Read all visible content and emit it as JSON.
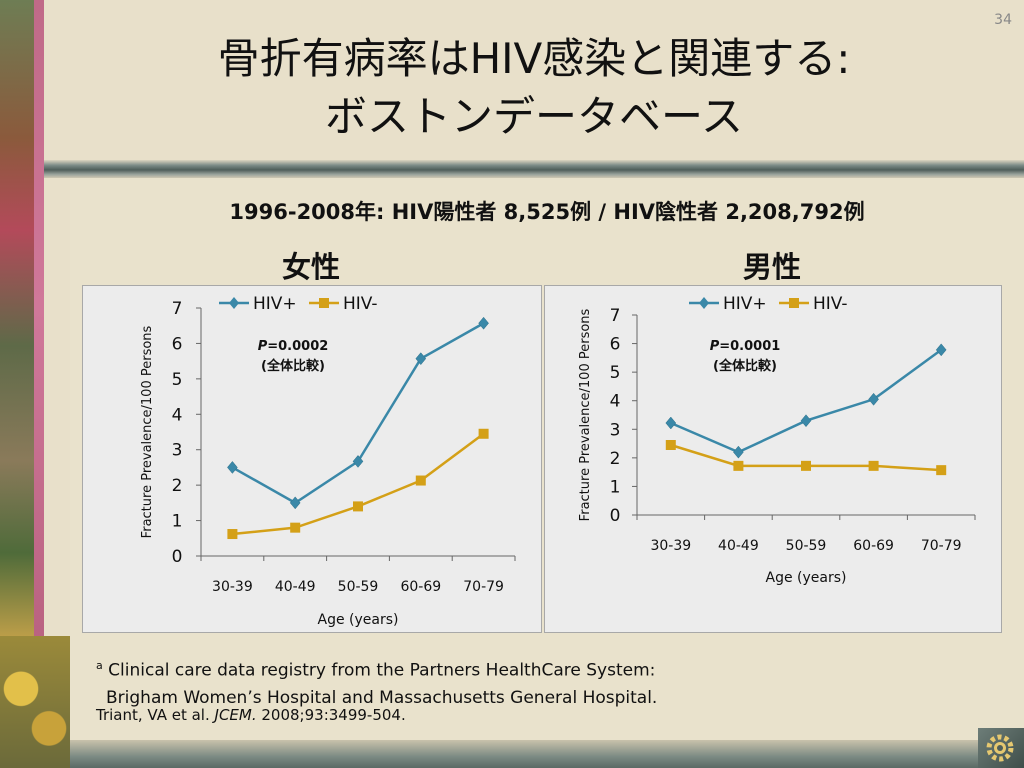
{
  "slide": {
    "number": "34",
    "title_line1": "骨折有病率はHIV感染と関連する:",
    "title_line2": "ボストンデータベース",
    "subtitle": "1996-2008年:  HIV陽性者 8,525例 / HIV陰性者 2,208,792例",
    "footnote_marker": "a",
    "footnote_line1": " Clinical care data registry from the Partners HealthCare System:",
    "footnote_line2": "Brigham Women’s Hospital and Massachusetts General Hospital.",
    "citation_authors": "Triant, VA et al. ",
    "citation_journal": "JCEM.",
    "citation_rest": " 2008;93:3499-504."
  },
  "colors": {
    "hiv_pos": "#3a88a8",
    "hiv_neg": "#d4a017"
  },
  "chart_data": [
    {
      "type": "line",
      "panel_title": "女性",
      "categories": [
        "30-39",
        "40-49",
        "50-59",
        "60-69",
        "70-79"
      ],
      "series": [
        {
          "name": "HIV+",
          "values": [
            2.5,
            1.5,
            2.67,
            5.57,
            6.57
          ],
          "marker": "diamond"
        },
        {
          "name": "HIV-",
          "values": [
            0.62,
            0.8,
            1.4,
            2.13,
            3.45
          ],
          "marker": "square"
        }
      ],
      "xlabel": "Age (years)",
      "ylabel": "Fracture Prevalence/100 Persons",
      "ylim": [
        0,
        7
      ],
      "yticks": [
        "0",
        "1",
        "2",
        "3",
        "4",
        "5",
        "6",
        "7"
      ],
      "annotation_p_label": "P",
      "annotation_p_value": "=0.0002",
      "annotation_comparison": "(全体比較)",
      "legend": "top-center",
      "grid": false
    },
    {
      "type": "line",
      "panel_title": "男性",
      "categories": [
        "30-39",
        "40-49",
        "50-59",
        "60-69",
        "70-79"
      ],
      "series": [
        {
          "name": "HIV+",
          "values": [
            3.22,
            2.2,
            3.3,
            4.05,
            5.78
          ],
          "marker": "diamond"
        },
        {
          "name": "HIV-",
          "values": [
            2.45,
            1.72,
            1.72,
            1.72,
            1.57
          ],
          "marker": "square"
        }
      ],
      "xlabel": "Age (years)",
      "ylabel": "Fracture Prevalence/100 Persons",
      "ylim": [
        0,
        7
      ],
      "yticks": [
        "0",
        "1",
        "2",
        "3",
        "4",
        "5",
        "6",
        "7"
      ],
      "annotation_p_label": "P",
      "annotation_p_value": "=0.0001",
      "annotation_comparison": "(全体比較)",
      "legend": "top-center",
      "grid": false
    }
  ]
}
